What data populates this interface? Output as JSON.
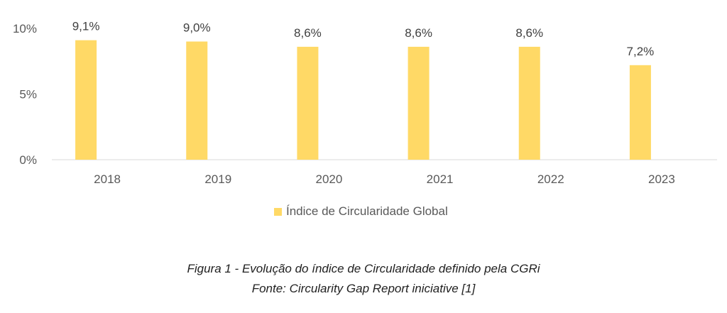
{
  "chart_data": {
    "type": "bar",
    "categories": [
      "2018",
      "2019",
      "2020",
      "2021",
      "2022",
      "2023"
    ],
    "series": [
      {
        "name": "Índice de Circularidade Global",
        "values": [
          9.1,
          9.0,
          8.6,
          8.6,
          8.6,
          7.2
        ],
        "color": "#FFD966"
      }
    ],
    "data_labels": [
      "9,1%",
      "9,0%",
      "8,6%",
      "8,6%",
      "8,6%",
      "7,2%"
    ],
    "ylim": [
      0,
      10
    ],
    "yticks": [
      0,
      5,
      10
    ],
    "ytick_labels": [
      "0%",
      "5%",
      "10%"
    ],
    "grid": false,
    "legend": "bottom"
  },
  "caption": {
    "line1": "Figura 1 - Evolução do índice de Circularidade definido pela CGRi",
    "line2": "Fonte: Circularity Gap Report iniciative [1]"
  }
}
